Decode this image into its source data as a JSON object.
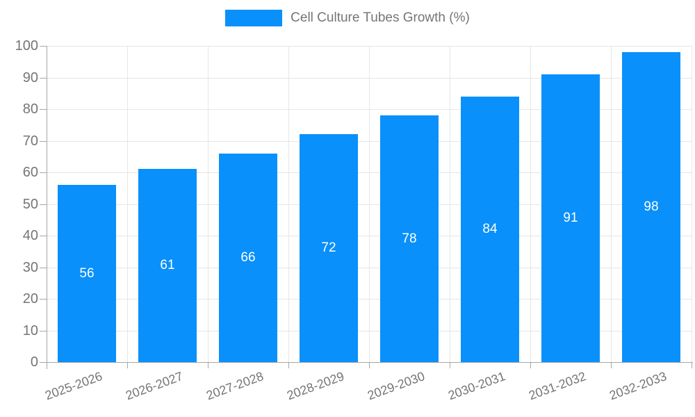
{
  "legend": {
    "label": "Cell Culture Tubes Growth (%)"
  },
  "colors": {
    "bar": "#0990FB",
    "grid": "#e6e6e6",
    "axis": "#a6a6a6",
    "tick_label": "#757575",
    "value_label": "#ffffff"
  },
  "chart_data": {
    "type": "bar",
    "title": "Cell Culture Tubes Growth (%)",
    "categories": [
      "2025-2026",
      "2026-2027",
      "2027-2028",
      "2028-2029",
      "2029-2030",
      "2030-2031",
      "2031-2032",
      "2032-2033"
    ],
    "values": [
      56,
      61,
      66,
      72,
      78,
      84,
      91,
      98
    ],
    "xlabel": "",
    "ylabel": "",
    "ylim": [
      0,
      100
    ],
    "yticks": [
      0,
      10,
      20,
      30,
      40,
      50,
      60,
      70,
      80,
      90,
      100
    ],
    "grid": true,
    "grid_vertical": true,
    "legend_position": "top",
    "value_labels": "inside-center",
    "x_label_rotation_deg": -20
  }
}
